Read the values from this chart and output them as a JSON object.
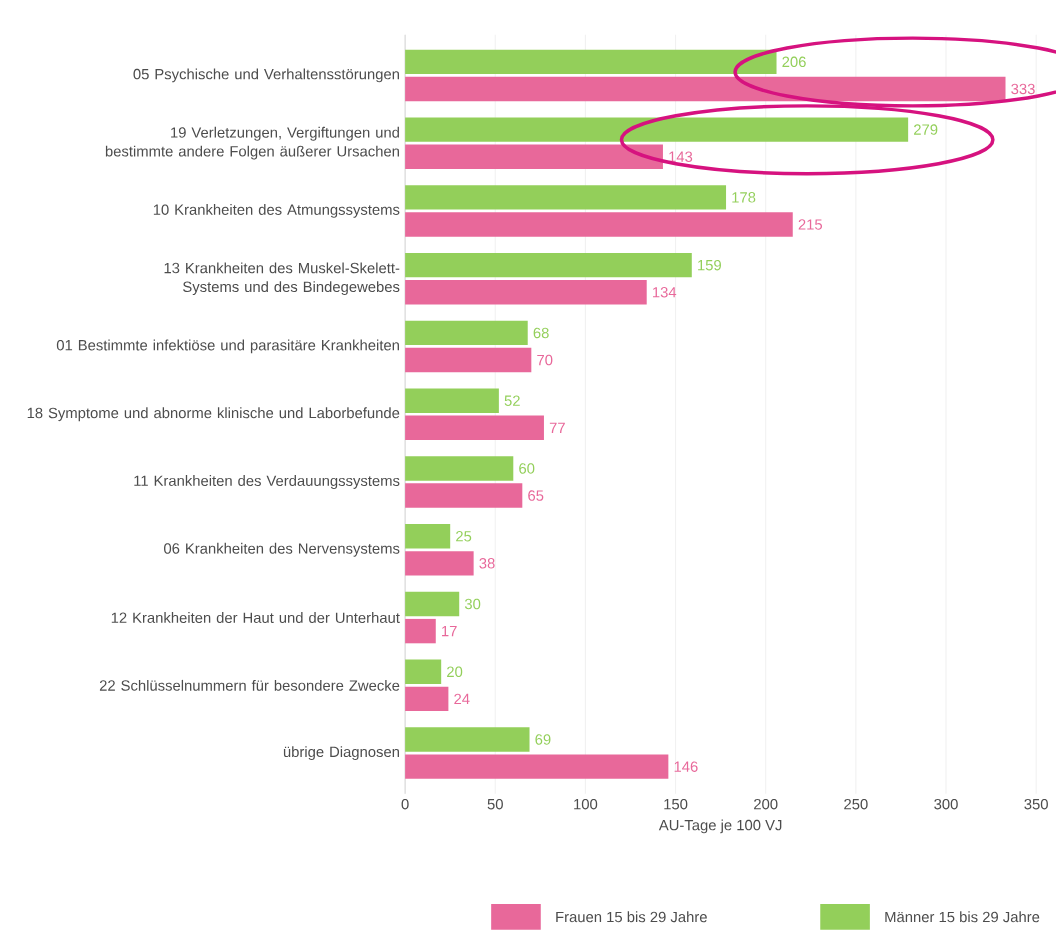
{
  "chart_data": {
    "type": "bar",
    "orientation": "horizontal",
    "xlabel": "AU-Tage je 100 VJ",
    "categories": [
      "05 Psychische und Verhaltensstörungen",
      "19 Verletzungen, Vergiftungen und bestimmte andere Folgen äußerer Ursachen",
      "10 Krankheiten des Atmungssystems",
      "13 Krankheiten des Muskel-Skelett-Systems und des Bindegewebes",
      "01 Bestimmte infektiöse und parasitäre Krankheiten",
      "18 Symptome und abnorme klinische und Laborbefunde",
      "11 Krankheiten des Verdauungssystems",
      "06 Krankheiten des Nervensystems",
      "12 Krankheiten der Haut und der Unterhaut",
      "22 Schlüsselnummern für besondere Zwecke",
      "übrige Diagnosen"
    ],
    "series": [
      {
        "name": "Frauen 15 bis 29 Jahre",
        "color": "#e8689a",
        "values": [
          333,
          143,
          215,
          134,
          70,
          77,
          65,
          38,
          17,
          24,
          146
        ]
      },
      {
        "name": "Männer 15 bis 29 Jahre",
        "color": "#93cf5a",
        "values": [
          206,
          279,
          178,
          159,
          68,
          52,
          60,
          25,
          30,
          20,
          69
        ]
      }
    ],
    "xlim": [
      0,
      350
    ],
    "xticks": [
      0,
      50,
      100,
      150,
      200,
      250,
      300,
      350
    ],
    "grid": "x",
    "legend": "bottom right",
    "data_labels": true
  }
}
